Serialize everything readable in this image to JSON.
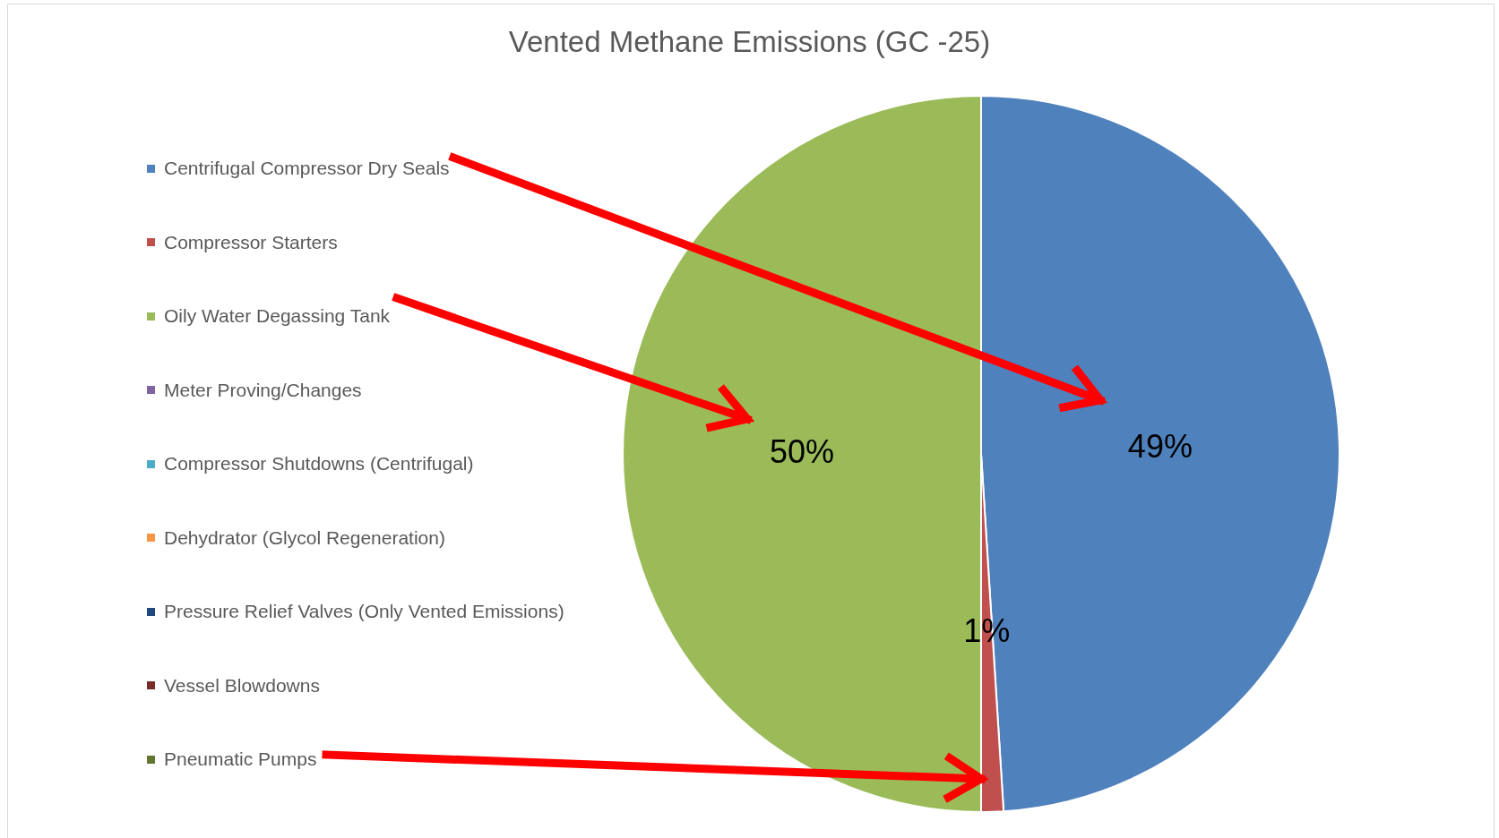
{
  "chart_data": {
    "type": "pie",
    "title": "Vented Methane Emissions (GC -25)",
    "categories": [
      "Centrifugal Compressor Dry Seals",
      "Compressor Starters",
      "Oily Water Degassing Tank",
      "Meter Proving/Changes",
      "Compressor Shutdowns (Centrifugal)",
      "Dehydrator (Glycol Regeneration)",
      "Pressure Relief Valves (Only Vented Emissions)",
      "Vessel Blowdowns",
      "Pneumatic Pumps"
    ],
    "values": [
      49,
      1,
      50,
      0,
      0,
      0,
      0,
      0,
      0
    ],
    "colors": [
      "#4f81bd",
      "#c0504d",
      "#9bbb59",
      "#8064a2",
      "#4bacc6",
      "#f79646",
      "#1f497d",
      "#772c2a",
      "#5f7530"
    ],
    "value_labels": [
      "49%",
      "1%",
      "50%",
      null,
      null,
      null,
      null,
      null,
      null
    ],
    "legend": "left"
  }
}
